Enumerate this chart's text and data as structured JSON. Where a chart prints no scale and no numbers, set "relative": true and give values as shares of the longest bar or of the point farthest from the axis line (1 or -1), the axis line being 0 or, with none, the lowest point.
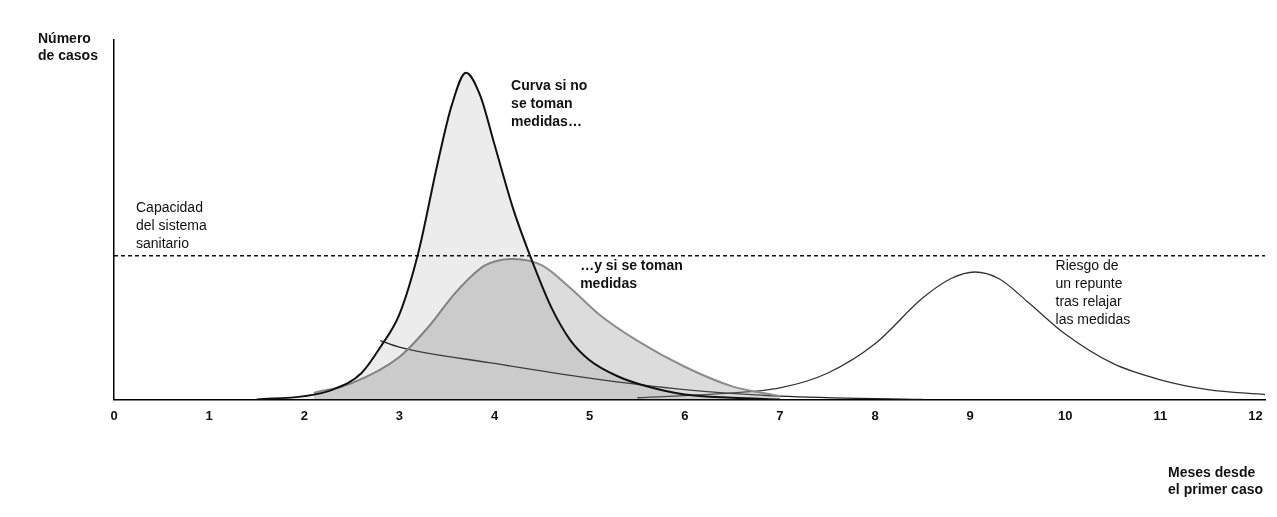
{
  "chart_data": {
    "type": "line",
    "relative": true,
    "xlabel": "Meses desde\nel primer caso",
    "ylabel": "Número\nde casos",
    "xlim": [
      0,
      12.1
    ],
    "xticks": [
      0,
      1,
      2,
      3,
      4,
      5,
      6,
      7,
      8,
      9,
      10,
      11,
      12
    ],
    "tick_labels": "x",
    "grid": false,
    "legend": false,
    "marker": "none",
    "series": [
      {
        "type": "area",
        "color": "#111111",
        "x": [
          1.5,
          2,
          2.3,
          2.6,
          2.8,
          3,
          3.2,
          3.4,
          3.55,
          3.7,
          3.85,
          4,
          4.2,
          4.4,
          4.6,
          4.8,
          5,
          5.3,
          5.6,
          6,
          6.5,
          7
        ],
        "values": [
          0,
          0.01,
          0.03,
          0.08,
          0.16,
          0.26,
          0.45,
          0.72,
          0.9,
          1,
          0.93,
          0.78,
          0.58,
          0.42,
          0.28,
          0.18,
          0.12,
          0.07,
          0.04,
          0.015,
          0.005,
          0
        ]
      },
      {
        "type": "area",
        "color": "#8c8c8c",
        "x": [
          2.1,
          2.5,
          3,
          3.3,
          3.6,
          3.9,
          4.2,
          4.5,
          4.8,
          5.1,
          5.5,
          6,
          6.5,
          7
        ],
        "values": [
          0.02,
          0.05,
          0.13,
          0.22,
          0.33,
          0.41,
          0.43,
          0.41,
          0.34,
          0.26,
          0.18,
          0.1,
          0.04,
          0.01
        ]
      },
      {
        "color": "#222222",
        "x": [
          2.8,
          3,
          4,
          5,
          6,
          7,
          8.5
        ],
        "values": [
          0.18,
          0.16,
          0.11,
          0.065,
          0.03,
          0.01,
          0
        ]
      },
      {
        "color": "#333333",
        "x": [
          5.5,
          6.5,
          7,
          7.5,
          8,
          8.5,
          8.8,
          9.05,
          9.3,
          9.6,
          10,
          10.5,
          11,
          11.5,
          12.1
        ],
        "values": [
          0.005,
          0.02,
          0.035,
          0.08,
          0.17,
          0.31,
          0.37,
          0.39,
          0.37,
          0.3,
          0.2,
          0.11,
          0.06,
          0.03,
          0.015
        ]
      }
    ],
    "ref_lines": [
      {
        "axis": "y",
        "value": 0.44,
        "label": "Capacidad\ndel sistema\nsanitario",
        "line_style": "dashed",
        "color": "#111111"
      }
    ],
    "annotations": [
      "Curva si no\nse toman\nmedidas…",
      "…y si se toman\nmedidas",
      "Riesgo de\nun repunte\ntras relajar\nlas medidas"
    ]
  }
}
